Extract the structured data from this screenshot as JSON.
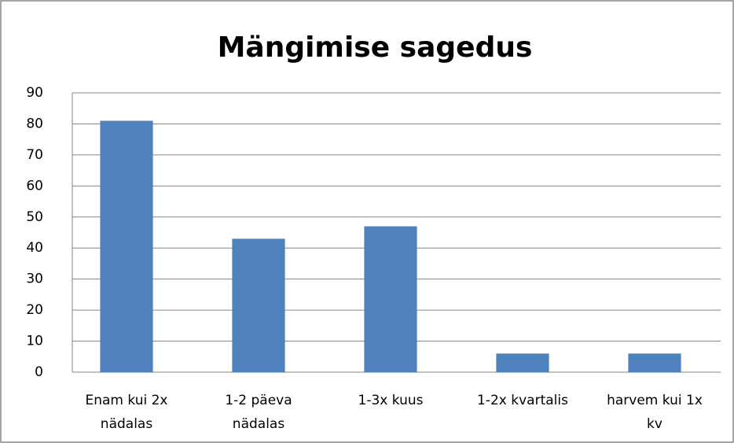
{
  "chart_data": {
    "type": "bar",
    "title": "Mängimise sagedus",
    "categories": [
      "Enam kui 2x\nnädalas",
      "1-2 päeva\nnädalas",
      "1-3x kuus",
      "1-2x kvartalis",
      "harvem kui 1x\nkv"
    ],
    "values": [
      81,
      43,
      47,
      6,
      6
    ],
    "color": "#4f81bd",
    "ylim": [
      0,
      90
    ],
    "yticks": [
      0,
      10,
      20,
      30,
      40,
      50,
      60,
      70,
      80,
      90
    ],
    "grid": true
  }
}
